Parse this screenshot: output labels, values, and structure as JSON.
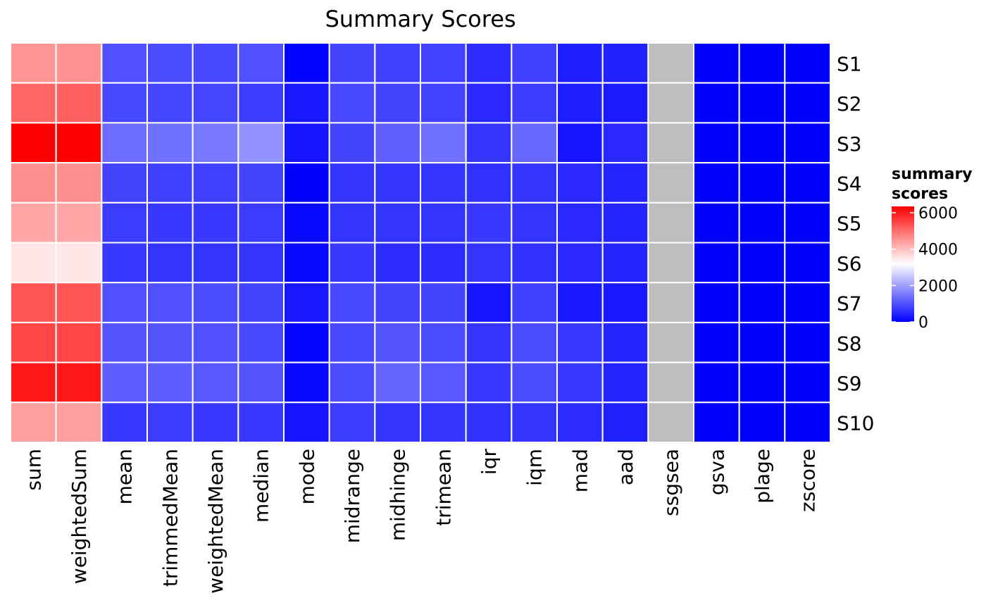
{
  "chart_data": {
    "type": "heatmap",
    "title": "Summary Scores",
    "columns": [
      "sum",
      "weightedSum",
      "mean",
      "trimmedMean",
      "weightedMean",
      "median",
      "mode",
      "midrange",
      "midhinge",
      "trimean",
      "iqr",
      "iqm",
      "mad",
      "aad",
      "ssgsea",
      "gsva",
      "plage",
      "zscore"
    ],
    "rows": [
      "S1",
      "S2",
      "S3",
      "S4",
      "S5",
      "S6",
      "S7",
      "S8",
      "S9",
      "S10"
    ],
    "values": [
      [
        4500,
        4550,
        1020,
        950,
        900,
        1000,
        20,
        850,
        800,
        820,
        550,
        800,
        380,
        420,
        null,
        0,
        0,
        0
      ],
      [
        5100,
        5150,
        900,
        880,
        860,
        750,
        300,
        900,
        850,
        820,
        500,
        750,
        380,
        330,
        null,
        0,
        0,
        0
      ],
      [
        6350,
        6350,
        1350,
        1400,
        1500,
        1850,
        250,
        850,
        1200,
        1400,
        650,
        1300,
        250,
        500,
        null,
        0,
        0,
        0
      ],
      [
        4600,
        4600,
        850,
        800,
        800,
        850,
        0,
        650,
        650,
        650,
        600,
        650,
        500,
        450,
        null,
        0,
        0,
        0
      ],
      [
        4300,
        4300,
        750,
        700,
        700,
        750,
        100,
        650,
        650,
        650,
        700,
        650,
        500,
        450,
        null,
        0,
        0,
        0
      ],
      [
        3500,
        3500,
        700,
        650,
        650,
        650,
        100,
        700,
        550,
        550,
        650,
        600,
        500,
        450,
        null,
        0,
        0,
        0
      ],
      [
        5300,
        5300,
        1000,
        1000,
        950,
        850,
        300,
        900,
        850,
        850,
        250,
        800,
        300,
        300,
        null,
        0,
        0,
        0
      ],
      [
        5500,
        5500,
        1050,
        1050,
        1000,
        900,
        50,
        900,
        1050,
        950,
        650,
        950,
        700,
        450,
        null,
        0,
        0,
        0
      ],
      [
        6050,
        6050,
        1150,
        1150,
        1100,
        1050,
        100,
        950,
        1250,
        1100,
        700,
        950,
        700,
        450,
        null,
        0,
        0,
        0
      ],
      [
        4400,
        4400,
        700,
        750,
        700,
        700,
        250,
        750,
        650,
        650,
        600,
        650,
        550,
        400,
        null,
        0,
        0,
        0
      ]
    ],
    "na_color": "#BEBEBE",
    "cell_border_color": "#FFFFFF",
    "color_scale": {
      "low": "#0000FF",
      "mid": "#FFFFFF",
      "high": "#FF0000",
      "midpoint": 3200,
      "limits": [
        0,
        6350
      ]
    },
    "legend": {
      "title": "summary\nscores",
      "ticks": [
        0,
        2000,
        4000,
        6000
      ],
      "tick_labels": [
        "0",
        "2000",
        "4000",
        "6000"
      ],
      "placement": "right"
    },
    "xlabel": "",
    "ylabel": ""
  }
}
